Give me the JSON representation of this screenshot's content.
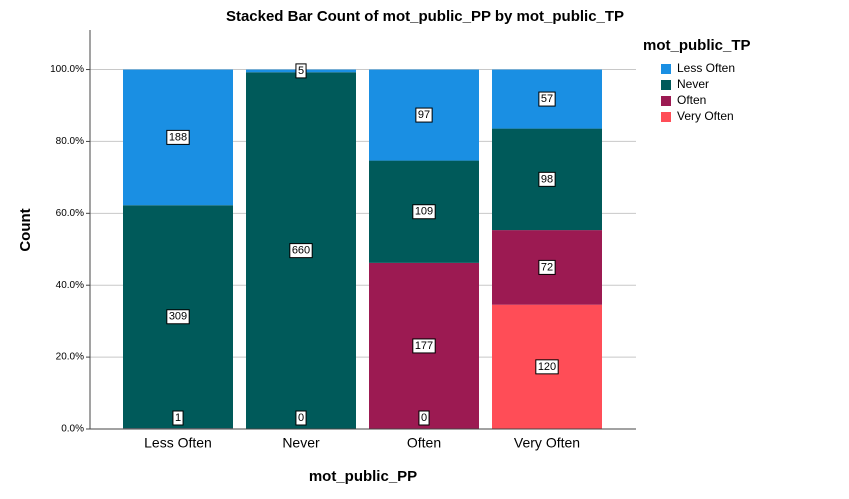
{
  "chart_data": {
    "type": "bar",
    "stacked": "percent",
    "title": "Stacked Bar Count of mot_public_PP by mot_public_TP",
    "x_label": "mot_public_PP",
    "y_label": "Count",
    "legend_title": "mot_public_TP",
    "categories": [
      "Less Often",
      "Never",
      "Often",
      "Very Often"
    ],
    "series": [
      {
        "name": "Less Often",
        "color": "#1a8fe3",
        "values": [
          188,
          5,
          97,
          57
        ]
      },
      {
        "name": "Never",
        "color": "#005a5a",
        "values": [
          309,
          660,
          109,
          98
        ]
      },
      {
        "name": "Often",
        "color": "#9c1a52",
        "values": [
          1,
          0,
          177,
          72
        ]
      },
      {
        "name": "Very Often",
        "color": "#ff4d57",
        "values": [
          null,
          null,
          0,
          120
        ]
      }
    ],
    "ylim": [
      0,
      111
    ],
    "yticks": [
      {
        "value": 0,
        "label": "0.0%"
      },
      {
        "value": 20,
        "label": "20.0%"
      },
      {
        "value": 40,
        "label": "40.0%"
      },
      {
        "value": 60,
        "label": "60.0%"
      },
      {
        "value": 80,
        "label": "80.0%"
      },
      {
        "value": 100,
        "label": "100.0%"
      }
    ],
    "grid": true
  }
}
